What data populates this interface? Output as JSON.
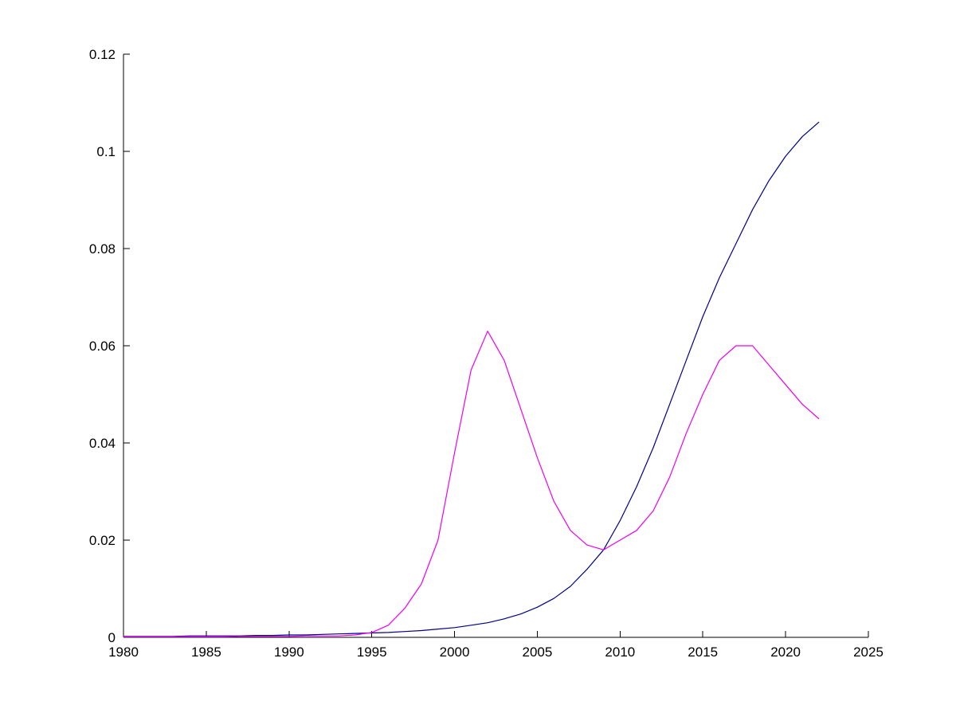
{
  "chart_data": {
    "type": "line",
    "title": "",
    "xlabel": "",
    "ylabel": "",
    "grid": false,
    "legend": null,
    "background": "#ffffff",
    "axis_color": "#000000",
    "xlim": [
      1980,
      2025
    ],
    "ylim": [
      0,
      0.12
    ],
    "xticks": [
      {
        "value": 1980,
        "label": "1980"
      },
      {
        "value": 1985,
        "label": "1985"
      },
      {
        "value": 1990,
        "label": "1990"
      },
      {
        "value": 1995,
        "label": "1995"
      },
      {
        "value": 2000,
        "label": "2000"
      },
      {
        "value": 2005,
        "label": "2005"
      },
      {
        "value": 2010,
        "label": "2010"
      },
      {
        "value": 2015,
        "label": "2015"
      },
      {
        "value": 2020,
        "label": "2020"
      },
      {
        "value": 2025,
        "label": "2025"
      }
    ],
    "yticks": [
      {
        "value": 0,
        "label": "0"
      },
      {
        "value": 0.02,
        "label": "0.02"
      },
      {
        "value": 0.04,
        "label": "0.04"
      },
      {
        "value": 0.06,
        "label": "0.06"
      },
      {
        "value": 0.08,
        "label": "0.08"
      },
      {
        "value": 0.1,
        "label": "0.1"
      },
      {
        "value": 0.12,
        "label": "0.12"
      }
    ],
    "x": [
      1980,
      1981,
      1982,
      1983,
      1984,
      1985,
      1986,
      1987,
      1988,
      1989,
      1990,
      1991,
      1992,
      1993,
      1994,
      1995,
      1996,
      1997,
      1998,
      1999,
      2000,
      2001,
      2002,
      2003,
      2004,
      2005,
      2006,
      2007,
      2008,
      2009,
      2010,
      2011,
      2012,
      2013,
      2014,
      2015,
      2016,
      2017,
      2018,
      2019,
      2020,
      2021,
      2022
    ],
    "series": [
      {
        "name": "blue-series",
        "color": "#00008B",
        "values": [
          0.0002,
          0.0002,
          0.0002,
          0.0002,
          0.0003,
          0.0003,
          0.0003,
          0.0003,
          0.0004,
          0.0004,
          0.0005,
          0.0005,
          0.0006,
          0.0007,
          0.0008,
          0.0009,
          0.001,
          0.0012,
          0.0014,
          0.0017,
          0.002,
          0.0025,
          0.003,
          0.0038,
          0.0048,
          0.0062,
          0.008,
          0.0105,
          0.014,
          0.018,
          0.024,
          0.031,
          0.039,
          0.048,
          0.057,
          0.066,
          0.074,
          0.081,
          0.088,
          0.094,
          0.099,
          0.103,
          0.106
        ]
      },
      {
        "name": "magenta-series",
        "color": "#EE00EE",
        "values": [
          0.0001,
          0.0001,
          0.0001,
          0.0001,
          0.0001,
          0.0001,
          0.0001,
          0.0002,
          0.0002,
          0.0002,
          0.0002,
          0.0003,
          0.0003,
          0.0003,
          0.0005,
          0.001,
          0.0025,
          0.006,
          0.011,
          0.02,
          0.038,
          0.055,
          0.063,
          0.057,
          0.047,
          0.037,
          0.028,
          0.022,
          0.019,
          0.018,
          0.02,
          0.022,
          0.026,
          0.033,
          0.042,
          0.05,
          0.057,
          0.06,
          0.06,
          0.056,
          0.052,
          0.048,
          0.045
        ]
      }
    ]
  }
}
